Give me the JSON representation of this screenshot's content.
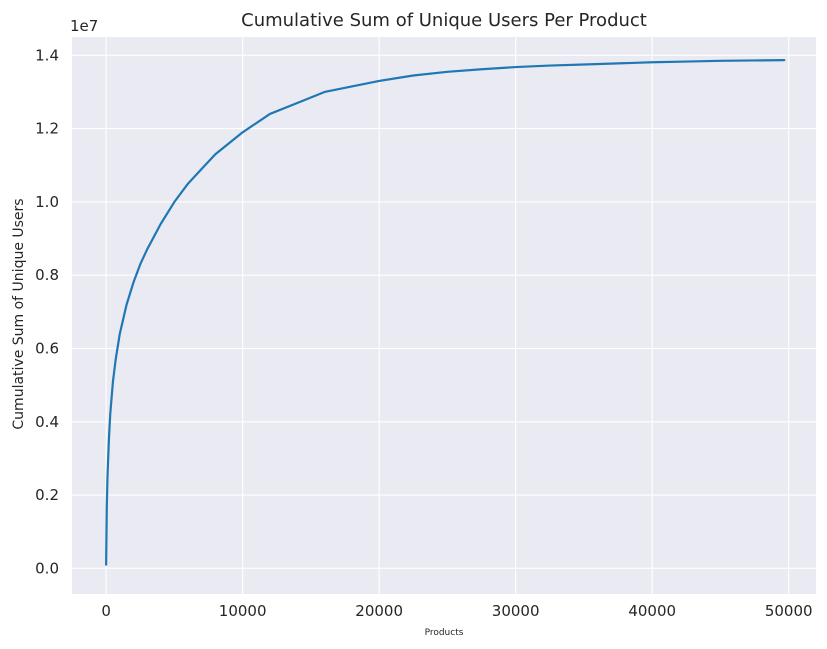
{
  "chart_data": {
    "type": "line",
    "title": "Cumulative Sum of Unique Users Per Product",
    "xlabel": "Products",
    "ylabel": "Cumulative Sum of Unique Users",
    "y_offset_label": "1e7",
    "xlim": [
      -2500,
      52000
    ],
    "ylim": [
      -0.07,
      1.45
    ],
    "x_ticks": [
      0,
      10000,
      20000,
      30000,
      40000,
      50000
    ],
    "x_tick_labels": [
      "0",
      "10000",
      "20000",
      "30000",
      "40000",
      "50000"
    ],
    "y_ticks": [
      0.0,
      0.2,
      0.4,
      0.6,
      0.8,
      1.0,
      1.2,
      1.4
    ],
    "y_tick_labels": [
      "0.0",
      "0.2",
      "0.4",
      "0.6",
      "0.8",
      "1.0",
      "1.2",
      "1.4"
    ],
    "grid": true,
    "background": "#eaeaf2",
    "series": [
      {
        "color": "#1f77b4",
        "x": [
          0,
          50,
          100,
          200,
          300,
          500,
          700,
          1000,
          1500,
          2000,
          2500,
          3000,
          4000,
          5000,
          6000,
          7000,
          8000,
          9000,
          10000,
          12000,
          14000,
          16000,
          18000,
          20000,
          22500,
          25000,
          27500,
          30000,
          32500,
          35000,
          37500,
          40000,
          42500,
          45000,
          47500,
          49677
        ],
        "y": [
          0.01,
          0.17,
          0.25,
          0.35,
          0.42,
          0.51,
          0.57,
          0.64,
          0.72,
          0.78,
          0.83,
          0.87,
          0.94,
          1.0,
          1.05,
          1.09,
          1.13,
          1.16,
          1.19,
          1.24,
          1.27,
          1.3,
          1.315,
          1.33,
          1.345,
          1.355,
          1.362,
          1.368,
          1.372,
          1.375,
          1.378,
          1.381,
          1.383,
          1.385,
          1.386,
          1.387
        ]
      }
    ]
  }
}
